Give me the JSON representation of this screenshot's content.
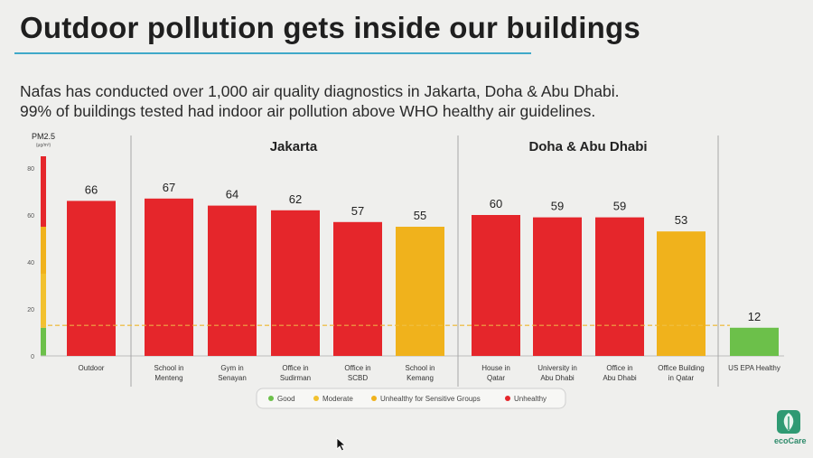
{
  "slide": {
    "title": "Outdoor pollution gets inside our buildings",
    "subtitle_lines": [
      "Nafas has conducted over 1,000 air quality diagnostics in Jakarta, Doha & Abu Dhabi.",
      "99% of buildings tested had indoor air pollution above WHO healthy air guidelines."
    ]
  },
  "chart_data": {
    "type": "bar",
    "ylabel": "PM2.5",
    "yunit": "(μg/m³)",
    "ylim": [
      0,
      85
    ],
    "yticks": [
      0,
      20,
      40,
      60,
      80
    ],
    "grid": false,
    "guideline_value": 13,
    "groups": [
      {
        "label": "Jakarta",
        "range": [
          1,
          5
        ]
      },
      {
        "label": "Doha & Abu Dhabi",
        "range": [
          6,
          9
        ]
      }
    ],
    "categories": [
      [
        "Outdoor"
      ],
      [
        "School in",
        "Menteng"
      ],
      [
        "Gym in",
        "Senayan"
      ],
      [
        "Office in",
        "Sudirman"
      ],
      [
        "Office in",
        "SCBD"
      ],
      [
        "School in",
        "Kemang"
      ],
      [
        "House in",
        "Qatar"
      ],
      [
        "University in",
        "Abu Dhabi"
      ],
      [
        "Office in",
        "Abu Dhabi"
      ],
      [
        "Office Building",
        "in Qatar"
      ],
      [
        "US EPA Healthy"
      ]
    ],
    "values": [
      66,
      67,
      64,
      62,
      57,
      55,
      60,
      59,
      59,
      53,
      12
    ],
    "bar_levels": [
      "unhealthy",
      "unhealthy",
      "unhealthy",
      "unhealthy",
      "unhealthy",
      "usg",
      "unhealthy",
      "unhealthy",
      "unhealthy",
      "usg",
      "good"
    ],
    "legend": [
      {
        "key": "good",
        "label": "Good",
        "color": "#6cc04a"
      },
      {
        "key": "moderate",
        "label": "Moderate",
        "color": "#f2c12e"
      },
      {
        "key": "usg",
        "label": "Unhealthy for Sensitive Groups",
        "color": "#f0b21c"
      },
      {
        "key": "unhealthy",
        "label": "Unhealthy",
        "color": "#e5262b"
      }
    ],
    "legend_placement": "bottom",
    "scale_bands": [
      {
        "from": 0,
        "to": 12,
        "color": "#6cc04a"
      },
      {
        "from": 12,
        "to": 35,
        "color": "#f2c12e"
      },
      {
        "from": 35,
        "to": 55,
        "color": "#f0b21c"
      },
      {
        "from": 55,
        "to": 85,
        "color": "#e5262b"
      }
    ]
  },
  "branding": {
    "logo_text": "ecoCare"
  }
}
